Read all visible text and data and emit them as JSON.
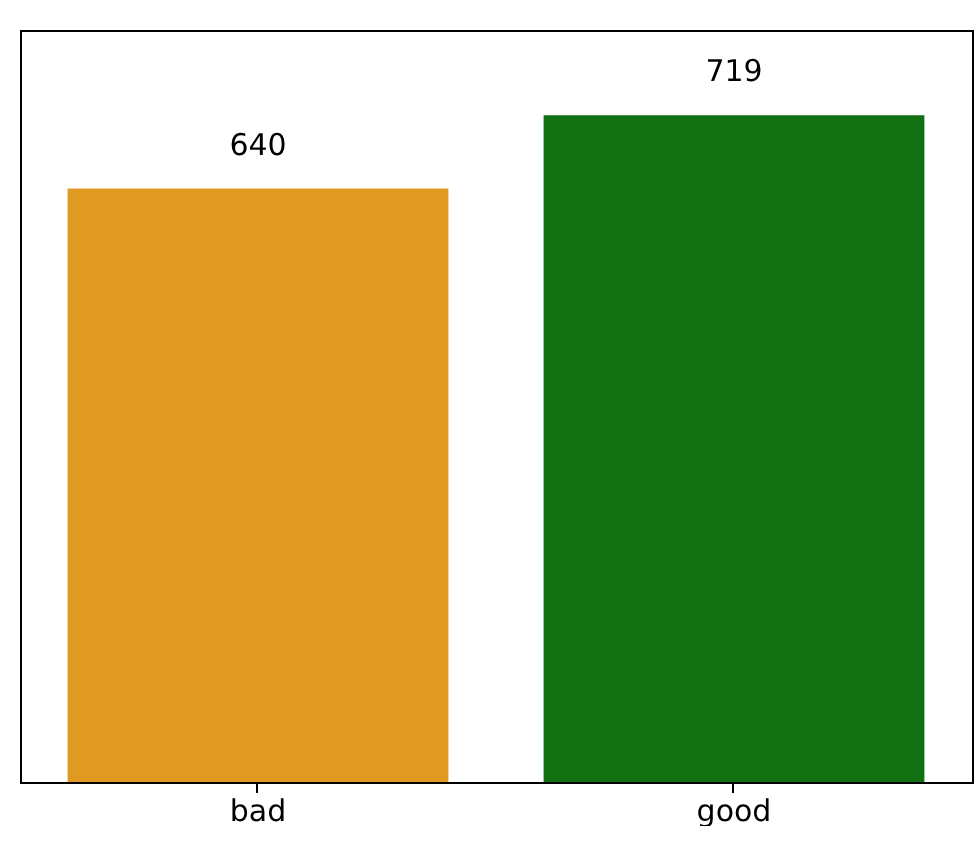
{
  "chart_data": {
    "type": "bar",
    "categories": [
      "bad",
      "good"
    ],
    "values": [
      640,
      719
    ],
    "colors": [
      "#e09a22",
      "#117011"
    ],
    "data_labels": true,
    "ylim": [
      0,
      811
    ],
    "tick_labels": "x",
    "grid": false
  }
}
